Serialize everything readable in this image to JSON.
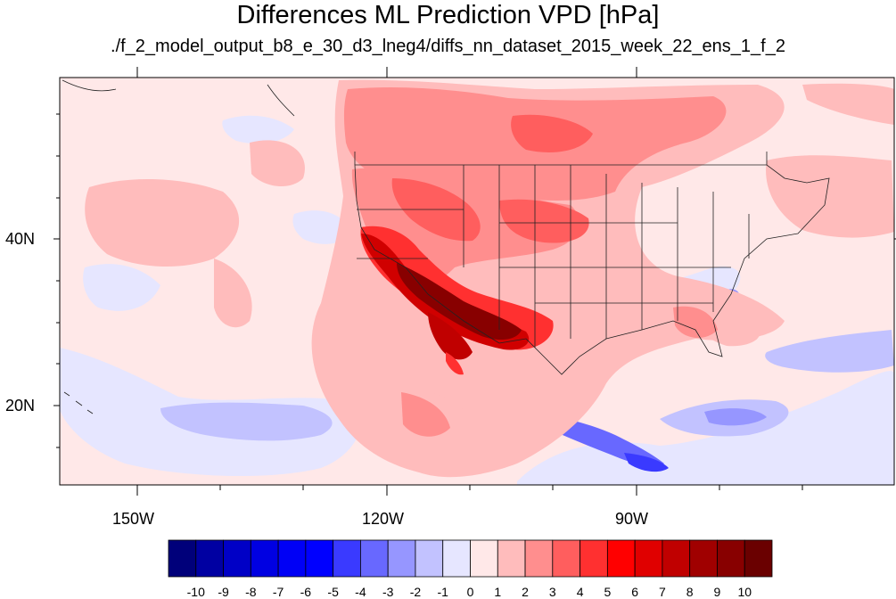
{
  "title": "Differences ML Prediction VPD [hPa]",
  "subtitle": "./f_2_model_output_b8_e_30_d3_lneg4/diffs_nn_dataset_2015_week_22_ens_1_f_2",
  "axes": {
    "lon_labels": [
      "150W",
      "120W",
      "90W"
    ],
    "lat_labels": [
      "40N",
      "20N"
    ]
  },
  "colorbar": {
    "levels": [
      "-10",
      "-9",
      "-8",
      "-7",
      "-6",
      "-5",
      "-4",
      "-3",
      "-2",
      "-1",
      "0",
      "1",
      "2",
      "3",
      "4",
      "5",
      "6",
      "7",
      "8",
      "9",
      "10"
    ],
    "colors": [
      "#00007a",
      "#0000a2",
      "#0000c6",
      "#0000e2",
      "#0000f6",
      "#0000ff",
      "#3a3aff",
      "#6868ff",
      "#9696ff",
      "#c2c2ff",
      "#e6e6ff",
      "#ffe8e8",
      "#ffbcbc",
      "#ff8e8e",
      "#ff5e5e",
      "#ff3030",
      "#ff0000",
      "#e00000",
      "#c00000",
      "#a00000",
      "#880000",
      "#6a0000"
    ]
  },
  "colors": {
    "background_field": "#ffe8e8",
    "low_positive": "#ffbcbc",
    "mid_positive": "#ff8e8e",
    "high_positive": "#ff3030",
    "peak_positive": "#880000",
    "low_negative": "#e6e6ff",
    "mid_negative": "#9696ff",
    "high_negative": "#3a3aff"
  }
}
